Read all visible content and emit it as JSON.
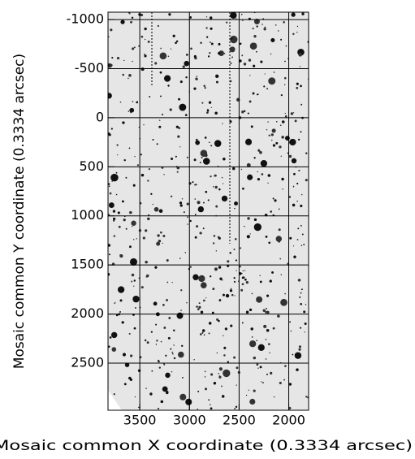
{
  "chart_data": {
    "type": "image",
    "xlabel": "Mosaic common X coordinate (0.3334 arcsec)",
    "ylabel": "Mosaic common Y coordinate (0.3334 arcsec)",
    "xlim": [
      3820,
      1800
    ],
    "xticks": [
      3500,
      3000,
      2500,
      2000
    ],
    "ylim": [
      2980,
      -1075
    ],
    "yticks": [
      -1000,
      -500,
      0,
      500,
      1000,
      1500,
      2000,
      2500
    ],
    "grid": true
  }
}
